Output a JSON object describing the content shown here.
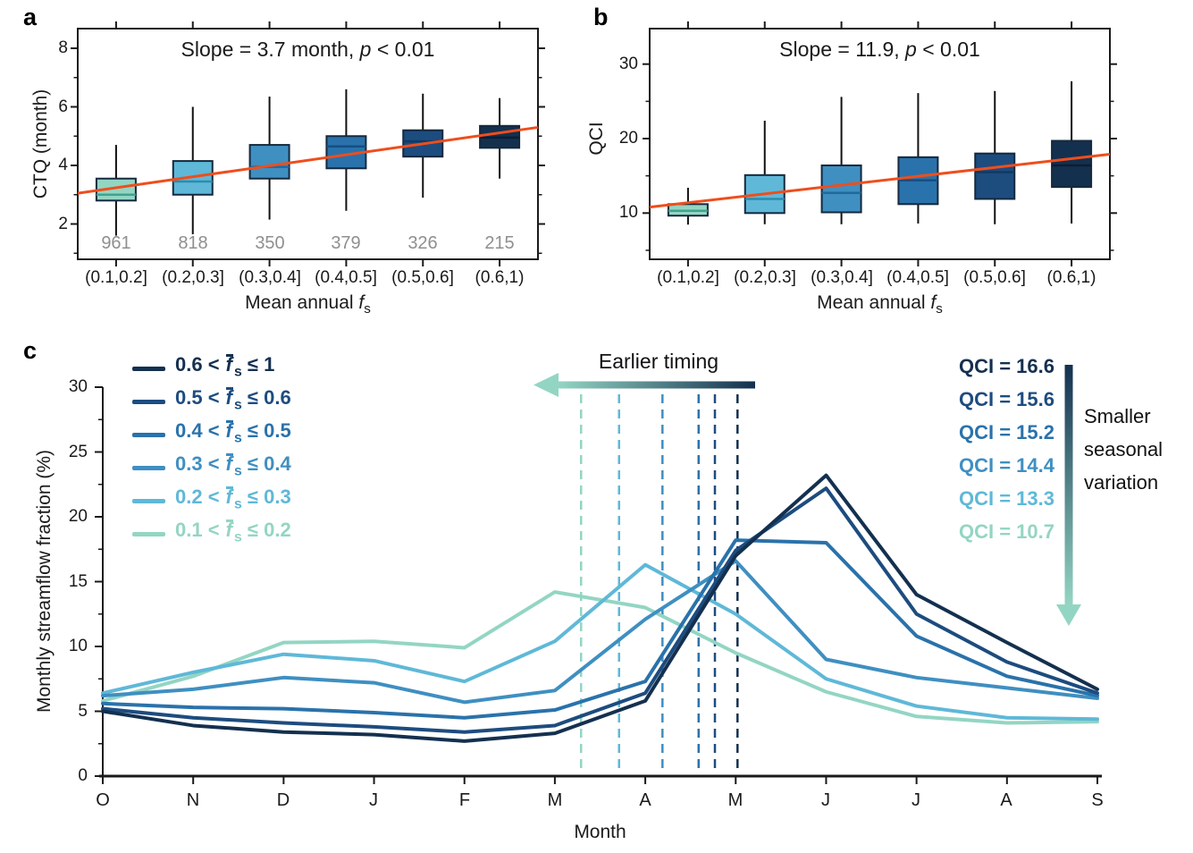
{
  "figure": {
    "panel_labels": [
      "a",
      "b",
      "c"
    ],
    "colors": {
      "box_fills": [
        "#93d5c3",
        "#5fb8d8",
        "#3f8fc1",
        "#2a72ab",
        "#1d4c7f",
        "#14304f"
      ],
      "box_medians": [
        "#3fa38d",
        "#2b8cb0",
        "#20699c",
        "#174e81",
        "#113a62",
        "#0b1e33"
      ],
      "box_edge": "#15293e",
      "whisker": "#111111",
      "trend": "#ee4e1d",
      "counts_gray": "#8f8f8f",
      "axis": "#1a1a1a"
    }
  },
  "chart_data": [
    {
      "id": "a",
      "type": "box",
      "title_parts": {
        "pre": "Slope = 3.7 month, ",
        "italic": "p",
        "post": " < 0.01"
      },
      "ylabel": "CTQ (month)",
      "xlabel_parts": {
        "pre": "Mean annual ",
        "fvar": "f",
        "fsub": "s"
      },
      "yticks": [
        2,
        4,
        6,
        8
      ],
      "ylim": [
        0.8,
        8.7
      ],
      "grid": false,
      "categories": [
        "(0.1,0.2]",
        "(0.2,0.3]",
        "(0.3,0.4]",
        "(0.4,0.5]",
        "(0.5,0.6]",
        "(0.6,1)"
      ],
      "counts": [
        "961",
        "818",
        "350",
        "379",
        "326",
        "215"
      ],
      "boxes": [
        {
          "whisker_low": 1.6,
          "q1": 2.8,
          "median": 3.0,
          "q3": 3.55,
          "whisker_high": 4.7
        },
        {
          "whisker_low": 1.65,
          "q1": 3.0,
          "median": 3.45,
          "q3": 4.15,
          "whisker_high": 6.0
        },
        {
          "whisker_low": 2.15,
          "q1": 3.55,
          "median": 3.95,
          "q3": 4.7,
          "whisker_high": 6.35
        },
        {
          "whisker_low": 2.45,
          "q1": 3.9,
          "median": 4.65,
          "q3": 5.0,
          "whisker_high": 6.6
        },
        {
          "whisker_low": 2.9,
          "q1": 4.3,
          "median": 4.82,
          "q3": 5.2,
          "whisker_high": 6.45
        },
        {
          "whisker_low": 3.55,
          "q1": 4.6,
          "median": 4.95,
          "q3": 5.35,
          "whisker_high": 6.3
        }
      ],
      "trend": {
        "start_value": 3.05,
        "end_value": 5.3
      }
    },
    {
      "id": "b",
      "type": "box",
      "title_parts": {
        "pre": "Slope = 11.9, ",
        "italic": "p",
        "post": " < 0.01"
      },
      "ylabel": "QCI",
      "xlabel_parts": {
        "pre": "Mean annual ",
        "fvar": "f",
        "fsub": "s"
      },
      "yticks": [
        10,
        20,
        30
      ],
      "ylim": [
        3.8,
        34.8
      ],
      "grid": false,
      "categories": [
        "(0.1,0.2]",
        "(0.2,0.3]",
        "(0.3,0.4]",
        "(0.4,0.5]",
        "(0.5,0.6]",
        "(0.6,1)"
      ],
      "counts": [],
      "boxes": [
        {
          "whisker_low": 8.45,
          "q1": 9.65,
          "median": 10.3,
          "q3": 11.2,
          "whisker_high": 13.4
        },
        {
          "whisker_low": 8.5,
          "q1": 10.0,
          "median": 11.9,
          "q3": 15.1,
          "whisker_high": 22.4
        },
        {
          "whisker_low": 8.5,
          "q1": 10.1,
          "median": 12.7,
          "q3": 16.4,
          "whisker_high": 25.6
        },
        {
          "whisker_low": 8.6,
          "q1": 11.2,
          "median": 14.4,
          "q3": 17.5,
          "whisker_high": 26.1
        },
        {
          "whisker_low": 8.5,
          "q1": 11.9,
          "median": 15.5,
          "q3": 18.0,
          "whisker_high": 26.4
        },
        {
          "whisker_low": 8.6,
          "q1": 13.5,
          "median": 16.4,
          "q3": 19.7,
          "whisker_high": 27.7
        }
      ],
      "trend": {
        "start_value": 10.8,
        "end_value": 17.9
      }
    },
    {
      "id": "c",
      "type": "line",
      "ylabel": "Monthly streamflow fraction (%)",
      "xlabel": "Month",
      "months": [
        "O",
        "N",
        "D",
        "J",
        "F",
        "M",
        "A",
        "M",
        "J",
        "J",
        "A",
        "S"
      ],
      "yticks": [
        0,
        5,
        10,
        15,
        20,
        25,
        30
      ],
      "ylim": [
        0,
        30
      ],
      "grid": false,
      "legend_fvar": "f",
      "legend_fsub": "s",
      "series": [
        {
          "label_pre": "0.6 < ",
          "label_post": " ≤ 1",
          "qci_label": "QCI = 16.6",
          "color": "#14304f",
          "values": [
            5.0,
            3.9,
            3.4,
            3.2,
            2.7,
            3.3,
            5.8,
            17.0,
            23.2,
            14.0,
            10.3,
            6.7
          ],
          "timing_month": 7.02
        },
        {
          "label_pre": "0.5 < ",
          "label_post": " ≤ 0.6",
          "qci_label": "QCI = 15.6",
          "color": "#1d4c7f",
          "values": [
            5.2,
            4.5,
            4.1,
            3.8,
            3.4,
            3.9,
            6.4,
            17.4,
            22.2,
            12.5,
            8.8,
            6.4
          ],
          "timing_month": 6.77
        },
        {
          "label_pre": "0.4 < ",
          "label_post": " ≤ 0.5",
          "qci_label": "QCI = 15.2",
          "color": "#2a72ab",
          "values": [
            5.6,
            5.3,
            5.2,
            4.9,
            4.5,
            5.1,
            7.3,
            18.2,
            18.0,
            10.8,
            7.7,
            6.2
          ],
          "timing_month": 6.59
        },
        {
          "label_pre": "0.3 < ",
          "label_post": " ≤ 0.4",
          "qci_label": "QCI = 14.4",
          "color": "#3f8fc1",
          "values": [
            6.2,
            6.7,
            7.6,
            7.2,
            5.7,
            6.6,
            12.1,
            16.6,
            9.0,
            7.6,
            6.8,
            6.0
          ],
          "timing_month": 6.19
        },
        {
          "label_pre": "0.2 < ",
          "label_post": " ≤ 0.3",
          "qci_label": "QCI = 13.3",
          "color": "#5fb8d8",
          "values": [
            6.4,
            8.0,
            9.4,
            8.9,
            7.3,
            10.4,
            16.3,
            12.5,
            7.5,
            5.4,
            4.5,
            4.4
          ],
          "timing_month": 5.71
        },
        {
          "label_pre": "0.1 < ",
          "label_post": " ≤ 0.2",
          "qci_label": "QCI = 10.7",
          "color": "#93d5c3",
          "values": [
            5.8,
            7.7,
            10.3,
            10.4,
            9.9,
            14.2,
            13.0,
            9.5,
            6.5,
            4.6,
            4.1,
            4.2
          ],
          "timing_month": 5.29
        }
      ],
      "annotations": {
        "earlier_timing": "Earlier timing",
        "smaller_lines": [
          "Smaller",
          "seasonal",
          "variation"
        ]
      }
    }
  ]
}
